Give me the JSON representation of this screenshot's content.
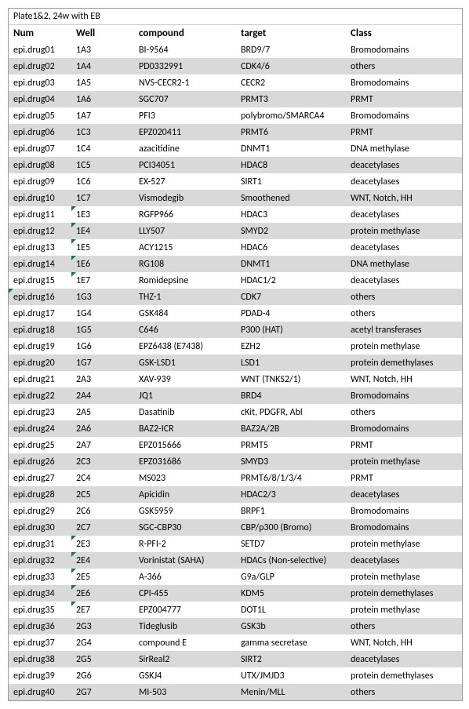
{
  "title": "Plate1&2, 24w with EB",
  "columns": [
    "Num",
    "Well",
    "compound",
    "target",
    "Class"
  ],
  "colors": {
    "header_bg": "#ffffff",
    "odd_bg": "#ffffff",
    "even_bg": "#d9d9d9",
    "border": "#999999",
    "marker": "#107c41"
  },
  "font": {
    "family": "Calibri",
    "size_body": 12,
    "size_header": 13
  },
  "column_widths": {
    "num": 80,
    "well": 80,
    "compound": 130,
    "target": 140,
    "class": 148
  },
  "rows": [
    {
      "num": "epi.drug01",
      "well": "1A3",
      "compound": "BI-9564",
      "target": "BRD9/7",
      "class": "Bromodomains",
      "num_mark": false,
      "well_mark": false
    },
    {
      "num": "epi.drug02",
      "well": "1A4",
      "compound": "PD0332991",
      "target": "CDK4/6",
      "class": "others",
      "num_mark": false,
      "well_mark": false
    },
    {
      "num": "epi.drug03",
      "well": "1A5",
      "compound": "NVS-CECR2-1",
      "target": "CECR2",
      "class": "Bromodomains",
      "num_mark": false,
      "well_mark": false
    },
    {
      "num": "epi.drug04",
      "well": "1A6",
      "compound": "SGC707",
      "target": "PRMT3",
      "class": "PRMT",
      "num_mark": false,
      "well_mark": false
    },
    {
      "num": "epi.drug05",
      "well": "1A7",
      "compound": "PFI3",
      "target": "polybromo/SMARCA4",
      "class": "Bromodomains",
      "num_mark": false,
      "well_mark": false
    },
    {
      "num": "epi.drug06",
      "well": "1C3",
      "compound": "EPZ020411",
      "target": "PRMT6",
      "class": "PRMT",
      "num_mark": false,
      "well_mark": false
    },
    {
      "num": "epi.drug07",
      "well": "1C4",
      "compound": "azacitidine",
      "target": "DNMT1",
      "class": "DNA methylase",
      "num_mark": false,
      "well_mark": false
    },
    {
      "num": "epi.drug08",
      "well": "1C5",
      "compound": "PCI34051",
      "target": "HDAC8",
      "class": "deacetylases",
      "num_mark": false,
      "well_mark": false
    },
    {
      "num": "epi.drug09",
      "well": "1C6",
      "compound": "EX-527",
      "target": "SIRT1",
      "class": "deacetylases",
      "num_mark": false,
      "well_mark": false
    },
    {
      "num": "epi.drug10",
      "well": "1C7",
      "compound": "Vismodegib",
      "target": "Smoothened",
      "class": "WNT, Notch, HH",
      "num_mark": false,
      "well_mark": false
    },
    {
      "num": "epi.drug11",
      "well": "1E3",
      "compound": "RGFP966",
      "target": "HDAC3",
      "class": "deacetylases",
      "num_mark": false,
      "well_mark": true
    },
    {
      "num": "epi.drug12",
      "well": "1E4",
      "compound": "LLY507",
      "target": "SMYD2",
      "class": "protein methylase",
      "num_mark": false,
      "well_mark": true
    },
    {
      "num": "epi.drug13",
      "well": "1E5",
      "compound": "ACY1215",
      "target": "HDAC6",
      "class": "deacetylases",
      "num_mark": false,
      "well_mark": true
    },
    {
      "num": "epi.drug14",
      "well": "1E6",
      "compound": "RG108",
      "target": "DNMT1",
      "class": "DNA methylase",
      "num_mark": false,
      "well_mark": true
    },
    {
      "num": "epi.drug15",
      "well": "1E7",
      "compound": "Romidepsine",
      "target": "HDAC1/2",
      "class": "deacetylases",
      "num_mark": false,
      "well_mark": true
    },
    {
      "num": "epi.drug16",
      "well": "1G3",
      "compound": "THZ-1",
      "target": "CDK7",
      "class": "others",
      "num_mark": true,
      "well_mark": false
    },
    {
      "num": "epi.drug17",
      "well": "1G4",
      "compound": "GSK484",
      "target": "PDAD-4",
      "class": "others",
      "num_mark": false,
      "well_mark": false
    },
    {
      "num": "epi.drug18",
      "well": "1G5",
      "compound": "C646",
      "target": "P300 (HAT)",
      "class": "acetyl transferases",
      "num_mark": false,
      "well_mark": false
    },
    {
      "num": "epi.drug19",
      "well": "1G6",
      "compound": "EPZ6438 (E7438)",
      "target": "EZH2",
      "class": "protein methylase",
      "num_mark": false,
      "well_mark": false
    },
    {
      "num": "epi.drug20",
      "well": "1G7",
      "compound": "GSK-LSD1",
      "target": "LSD1",
      "class": "protein demethylases",
      "num_mark": false,
      "well_mark": false
    },
    {
      "num": "epi.drug21",
      "well": "2A3",
      "compound": "XAV-939",
      "target": "WNT (TNKS2/1)",
      "class": "WNT, Notch, HH",
      "num_mark": false,
      "well_mark": false
    },
    {
      "num": "epi.drug22",
      "well": "2A4",
      "compound": "JQ1",
      "target": "BRD4",
      "class": "Bromodomains",
      "num_mark": false,
      "well_mark": false
    },
    {
      "num": "epi.drug23",
      "well": "2A5",
      "compound": "Dasatinib",
      "target": "cKit, PDGFR, Abl",
      "class": "others",
      "num_mark": false,
      "well_mark": false
    },
    {
      "num": "epi.drug24",
      "well": "2A6",
      "compound": "BAZ2-ICR",
      "target": "BAZ2A/2B",
      "class": "Bromodomains",
      "num_mark": false,
      "well_mark": false
    },
    {
      "num": "epi.drug25",
      "well": "2A7",
      "compound": "EPZ015666",
      "target": "PRMT5",
      "class": "PRMT",
      "num_mark": false,
      "well_mark": false
    },
    {
      "num": "epi.drug26",
      "well": "2C3",
      "compound": "EPZ031686",
      "target": "SMYD3",
      "class": "protein methylase",
      "num_mark": false,
      "well_mark": false
    },
    {
      "num": "epi.drug27",
      "well": "2C4",
      "compound": "MS023",
      "target": "PRMT6/8/1/3/4",
      "class": "PRMT",
      "num_mark": false,
      "well_mark": false
    },
    {
      "num": "epi.drug28",
      "well": "2C5",
      "compound": "Apicidin",
      "target": "HDAC2/3",
      "class": "deacetylases",
      "num_mark": false,
      "well_mark": false
    },
    {
      "num": "epi.drug29",
      "well": "2C6",
      "compound": "GSK5959",
      "target": "BRPF1",
      "class": "Bromodomains",
      "num_mark": false,
      "well_mark": false
    },
    {
      "num": "epi.drug30",
      "well": "2C7",
      "compound": "SGC-CBP30",
      "target": "CBP/p300 (Bromo)",
      "class": "Bromodomains",
      "num_mark": false,
      "well_mark": false
    },
    {
      "num": "epi.drug31",
      "well": "2E3",
      "compound": "R-PFI-2",
      "target": "SETD7",
      "class": "protein methylase",
      "num_mark": false,
      "well_mark": true
    },
    {
      "num": "epi.drug32",
      "well": "2E4",
      "compound": "Vorinistat (SAHA)",
      "target": "HDACs (Non-selective)",
      "class": "deacetylases",
      "num_mark": false,
      "well_mark": true
    },
    {
      "num": "epi.drug33",
      "well": "2E5",
      "compound": "A-366",
      "target": "G9a/GLP",
      "class": "protein methylase",
      "num_mark": false,
      "well_mark": true
    },
    {
      "num": "epi.drug34",
      "well": "2E6",
      "compound": "CPI-455",
      "target": "KDM5",
      "class": "protein demethylases",
      "num_mark": false,
      "well_mark": true
    },
    {
      "num": "epi.drug35",
      "well": "2E7",
      "compound": "EPZ004777",
      "target": "DOT1L",
      "class": "protein methylase",
      "num_mark": false,
      "well_mark": true
    },
    {
      "num": "epi.drug36",
      "well": "2G3",
      "compound": "Tideglusib",
      "target": "GSK3b",
      "class": "others",
      "num_mark": false,
      "well_mark": false
    },
    {
      "num": "epi.drug37",
      "well": "2G4",
      "compound": "compound E",
      "target": "gamma secretase",
      "class": "WNT, Notch, HH",
      "num_mark": false,
      "well_mark": false
    },
    {
      "num": "epi.drug38",
      "well": "2G5",
      "compound": "SirReal2",
      "target": "SIRT2",
      "class": "deacetylases",
      "num_mark": false,
      "well_mark": false
    },
    {
      "num": "epi.drug39",
      "well": "2G6",
      "compound": "GSKJ4",
      "target": "UTX/JMJD3",
      "class": "protein demethylases",
      "num_mark": false,
      "well_mark": false
    },
    {
      "num": "epi.drug40",
      "well": "2G7",
      "compound": "MI-503",
      "target": "Menin/MLL",
      "class": "others",
      "num_mark": false,
      "well_mark": false
    }
  ]
}
